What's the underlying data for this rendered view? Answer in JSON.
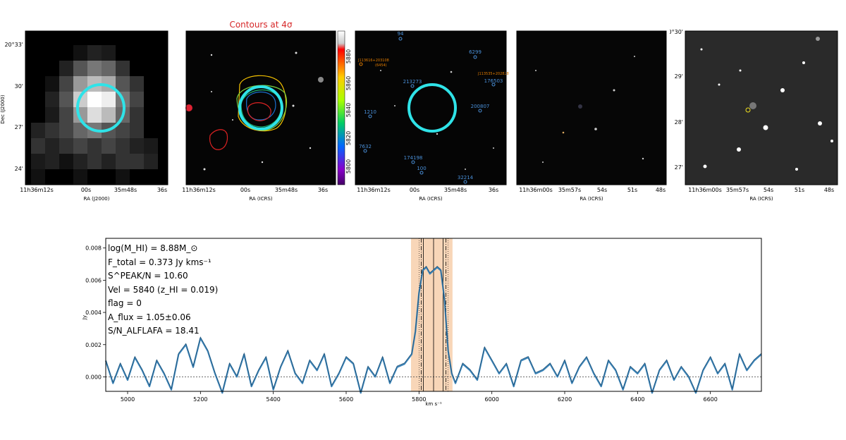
{
  "panels": {
    "p1": {
      "y_ticks": [
        "20°33'",
        "30'",
        "27'",
        "24'"
      ],
      "x_ticks": [
        "11h36m12s",
        "00s",
        "35m48s",
        "36s"
      ],
      "xlabel": "RA (J2000)",
      "ylabel": "Dec (J2000)"
    },
    "p2": {
      "title": "Contours at 4σ",
      "x_ticks": [
        "11h36m12s",
        "00s",
        "35m48s",
        "36s"
      ],
      "xlabel": "RA (ICRS)",
      "colorbar_ticks": [
        "5880",
        "5860",
        "5840",
        "5820",
        "5800"
      ]
    },
    "p3": {
      "x_ticks": [
        "11h36m12s",
        "00s",
        "35m48s",
        "36s"
      ],
      "xlabel": "RA (ICRS)",
      "labels": [
        "94",
        "6299",
        "J113616+203108",
        "(6454)",
        "J113535+202828",
        "213273",
        "176503",
        "1210",
        "200807",
        "7632",
        "174198",
        "100",
        "32214"
      ]
    },
    "p4": {
      "x_ticks": [
        "11h36m00s",
        "35m57s",
        "54s",
        "51s",
        "48s"
      ],
      "xlabel": "RA (ICRS)"
    },
    "p5": {
      "y_ticks": [
        "20°30'",
        "29'",
        "28'",
        "27'"
      ],
      "x_ticks": [
        "11h36m00s",
        "35m57s",
        "54s",
        "51s",
        "48s"
      ],
      "xlabel": "RA (ICRS)"
    }
  },
  "annotations": [
    "log(M_HI) = 8.88M_⊙",
    "F_total = 0.373 Jy kms⁻¹",
    "S^PEAK/N = 10.60",
    "Vel = 5840 (z_HI = 0.019)",
    "flag = 0",
    "A_flux = 1.05±0.06",
    "S/N_ALFLAFA = 18.41"
  ],
  "colors": {
    "spectrum": "#3b83b7",
    "band": "#f5c8a0",
    "circle": "#2fe3e8",
    "title": "#d62728",
    "label_blue": "#4a90d9",
    "label_orange": "#e07b00"
  },
  "chart_data": {
    "type": "line",
    "xlabel": "km s⁻¹",
    "ylabel": "Jy",
    "xlim": [
      4940,
      6740
    ],
    "ylim": [
      -0.0009,
      0.0086
    ],
    "x_ticks": [
      5000,
      5200,
      5400,
      5600,
      5800,
      6000,
      6200,
      6400,
      6600
    ],
    "y_ticks": [
      0.0,
      0.002,
      0.004,
      0.006,
      0.008
    ],
    "y_tick_labels": [
      "0.000",
      "0.002",
      "0.004",
      "0.006",
      "0.008"
    ],
    "x_tick_labels": [
      "5000",
      "5200",
      "5400",
      "5600",
      "5800",
      "6000",
      "6200",
      "6400",
      "6600"
    ],
    "shaded_band": [
      5778,
      5892
    ],
    "vlines_solid": [
      5812,
      5840,
      5866
    ],
    "vlines_dashed": [
      5806,
      5874
    ],
    "vlines_dotted": [
      5800,
      5880
    ],
    "zero_line": 0.0,
    "series": [
      {
        "x": [
          4940,
          4960,
          4980,
          5000,
          5020,
          5040,
          5060,
          5080,
          5100,
          5120,
          5140,
          5160,
          5180,
          5200,
          5220,
          5240,
          5260,
          5280,
          5300,
          5320,
          5340,
          5360,
          5380,
          5400,
          5420,
          5440,
          5460,
          5480,
          5500,
          5520,
          5540,
          5560,
          5580,
          5600,
          5620,
          5640,
          5660,
          5680,
          5700,
          5720,
          5740,
          5760,
          5780,
          5790,
          5800,
          5810,
          5820,
          5830,
          5840,
          5850,
          5860,
          5870,
          5880,
          5890,
          5900,
          5920,
          5940,
          5960,
          5980,
          6000,
          6020,
          6040,
          6060,
          6080,
          6100,
          6120,
          6140,
          6160,
          6180,
          6200,
          6220,
          6240,
          6260,
          6280,
          6300,
          6320,
          6340,
          6360,
          6380,
          6400,
          6420,
          6440,
          6460,
          6480,
          6500,
          6520,
          6540,
          6560,
          6580,
          6600,
          6620,
          6640,
          6660,
          6680,
          6700,
          6720,
          6740
        ],
        "y": [
          0.001,
          -0.0004,
          0.0008,
          -0.0002,
          0.0012,
          0.0004,
          -0.0006,
          0.001,
          0.0002,
          -0.0008,
          0.0014,
          0.002,
          0.0006,
          0.0024,
          0.0016,
          0.0002,
          -0.001,
          0.0008,
          0.0,
          0.0014,
          -0.0006,
          0.0004,
          0.0012,
          -0.0008,
          0.0006,
          0.0016,
          0.0002,
          -0.0004,
          0.001,
          0.0004,
          0.0014,
          -0.0006,
          0.0002,
          0.0012,
          0.0008,
          -0.001,
          0.0006,
          0.0,
          0.0012,
          -0.0004,
          0.0006,
          0.0008,
          0.0014,
          0.0028,
          0.0052,
          0.0066,
          0.0068,
          0.0064,
          0.0066,
          0.0068,
          0.0066,
          0.0048,
          0.0016,
          0.0002,
          -0.0004,
          0.0008,
          0.0004,
          -0.0002,
          0.0018,
          0.001,
          0.0002,
          0.0008,
          -0.0006,
          0.001,
          0.0012,
          0.0002,
          0.0004,
          0.0008,
          0.0,
          0.001,
          -0.0004,
          0.0006,
          0.0012,
          0.0002,
          -0.0006,
          0.001,
          0.0004,
          -0.0008,
          0.0006,
          0.0002,
          0.0008,
          -0.001,
          0.0004,
          0.001,
          -0.0002,
          0.0006,
          0.0,
          -0.001,
          0.0004,
          0.0012,
          0.0002,
          0.0008,
          -0.0008,
          0.0014,
          0.0004,
          0.001,
          0.0014
        ]
      }
    ]
  }
}
